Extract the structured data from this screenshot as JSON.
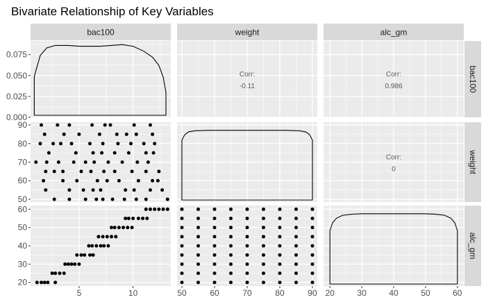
{
  "chart_data": {
    "type": "scatter",
    "title": "Bivariate Relationship of Key Variables",
    "variables": [
      "bac100",
      "weight",
      "alc_gm"
    ],
    "axes": {
      "bac100": {
        "range": [
          0.5,
          13.5
        ],
        "ticks": [
          5,
          10
        ],
        "tick_labels": [
          "5",
          "10"
        ]
      },
      "weight": {
        "range": [
          48.5,
          91.5
        ],
        "ticks": [
          50,
          60,
          70,
          80,
          90
        ],
        "tick_labels": [
          "50",
          "60",
          "70",
          "80",
          "90"
        ]
      },
      "alc_gm": {
        "range": [
          18.0,
          62.0
        ],
        "ticks": [
          20,
          30,
          40,
          50,
          60
        ],
        "tick_labels": [
          "20",
          "30",
          "40",
          "50",
          "60"
        ]
      }
    },
    "density_yaxis": {
      "range": [
        0,
        0.0913
      ],
      "ticks": [
        0,
        0.025,
        0.05,
        0.075
      ],
      "tick_labels": [
        "0.000",
        "0.025",
        "0.050",
        "0.075"
      ]
    },
    "correlations": [
      {
        "row": "bac100",
        "col": "weight",
        "label": "Corr:",
        "value": "-0.11"
      },
      {
        "row": "bac100",
        "col": "alc_gm",
        "label": "Corr:",
        "value": "0.986"
      },
      {
        "row": "weight",
        "col": "alc_gm",
        "label": "Corr:",
        "value": "0"
      }
    ],
    "density_curves": {
      "bac100": [
        [
          0.85,
          0.049
        ],
        [
          1.4,
          0.074
        ],
        [
          2,
          0.083
        ],
        [
          2.8,
          0.086
        ],
        [
          4,
          0.086
        ],
        [
          5,
          0.085
        ],
        [
          6,
          0.085
        ],
        [
          7,
          0.085
        ],
        [
          8,
          0.086
        ],
        [
          9,
          0.087
        ],
        [
          10,
          0.085
        ],
        [
          11,
          0.079
        ],
        [
          11.8,
          0.072
        ],
        [
          12.4,
          0.062
        ],
        [
          12.8,
          0.048
        ],
        [
          13.05,
          0.03
        ]
      ],
      "weight": [
        [
          50,
          0.79
        ],
        [
          50.8,
          0.86
        ],
        [
          52,
          0.9
        ],
        [
          54,
          0.915
        ],
        [
          58,
          0.92
        ],
        [
          70,
          0.92
        ],
        [
          82,
          0.92
        ],
        [
          86,
          0.915
        ],
        [
          88,
          0.9
        ],
        [
          89.2,
          0.86
        ],
        [
          90,
          0.79
        ]
      ],
      "alc_gm": [
        [
          20,
          0.7
        ],
        [
          20.8,
          0.8
        ],
        [
          22,
          0.86
        ],
        [
          24,
          0.9
        ],
        [
          27,
          0.915
        ],
        [
          30,
          0.92
        ],
        [
          40,
          0.92
        ],
        [
          50,
          0.92
        ],
        [
          53,
          0.915
        ],
        [
          56,
          0.9
        ],
        [
          58,
          0.86
        ],
        [
          59.2,
          0.8
        ],
        [
          60,
          0.7
        ]
      ]
    },
    "scatter_weight_vs_bac100": [
      [
        1.5,
        90
      ],
      [
        3.0,
        90
      ],
      [
        4.1,
        90
      ],
      [
        6.2,
        90
      ],
      [
        7.4,
        90
      ],
      [
        7.9,
        90
      ],
      [
        10.1,
        90
      ],
      [
        11.6,
        90
      ],
      [
        1.8,
        85
      ],
      [
        3.6,
        85
      ],
      [
        5.0,
        85
      ],
      [
        6.9,
        85
      ],
      [
        8.5,
        85
      ],
      [
        9.4,
        85
      ],
      [
        10.3,
        85
      ],
      [
        11.8,
        85
      ],
      [
        1.4,
        80
      ],
      [
        2.6,
        80
      ],
      [
        3.3,
        80
      ],
      [
        4.3,
        80
      ],
      [
        6.0,
        80
      ],
      [
        7.2,
        80
      ],
      [
        8.6,
        80
      ],
      [
        9.8,
        80
      ],
      [
        11.0,
        80
      ],
      [
        12.0,
        80
      ],
      [
        2.2,
        75
      ],
      [
        4.7,
        75
      ],
      [
        6.3,
        75
      ],
      [
        7.1,
        75
      ],
      [
        8.3,
        75
      ],
      [
        9.6,
        75
      ],
      [
        11.2,
        75
      ],
      [
        11.9,
        75
      ],
      [
        1.0,
        70
      ],
      [
        2.0,
        70
      ],
      [
        3.1,
        70
      ],
      [
        4.5,
        70
      ],
      [
        5.6,
        70
      ],
      [
        6.4,
        70
      ],
      [
        7.7,
        70
      ],
      [
        9.0,
        70
      ],
      [
        10.4,
        70
      ],
      [
        11.4,
        70
      ],
      [
        1.9,
        65
      ],
      [
        2.7,
        65
      ],
      [
        3.5,
        65
      ],
      [
        5.2,
        65
      ],
      [
        6.1,
        65
      ],
      [
        7.3,
        65
      ],
      [
        8.3,
        65
      ],
      [
        9.9,
        65
      ],
      [
        11.2,
        65
      ],
      [
        12.4,
        65
      ],
      [
        1.7,
        60
      ],
      [
        3.5,
        60
      ],
      [
        4.8,
        60
      ],
      [
        6.7,
        60
      ],
      [
        7.6,
        60
      ],
      [
        8.7,
        60
      ],
      [
        10.5,
        60
      ],
      [
        11.8,
        60
      ],
      [
        12.3,
        60
      ],
      [
        1.9,
        55
      ],
      [
        4.1,
        55
      ],
      [
        5.4,
        55
      ],
      [
        6.3,
        55
      ],
      [
        7.0,
        55
      ],
      [
        9.3,
        55
      ],
      [
        10.1,
        55
      ],
      [
        11.6,
        55
      ],
      [
        12.7,
        55
      ],
      [
        2.7,
        50
      ],
      [
        4.1,
        50
      ],
      [
        5.6,
        50
      ],
      [
        6.6,
        50
      ],
      [
        7.2,
        50
      ],
      [
        8.1,
        50
      ],
      [
        9.2,
        50
      ],
      [
        10.3,
        50
      ],
      [
        11.2,
        50
      ],
      [
        13.2,
        50
      ]
    ],
    "scatter_alc_gm_vs_bac100": [
      [
        1.1,
        20
      ],
      [
        1.5,
        20
      ],
      [
        1.8,
        20
      ],
      [
        2.1,
        20
      ],
      [
        2.8,
        20
      ],
      [
        2.5,
        25
      ],
      [
        2.8,
        25
      ],
      [
        3.2,
        25
      ],
      [
        3.6,
        25
      ],
      [
        3.7,
        30
      ],
      [
        4.0,
        30
      ],
      [
        4.3,
        30
      ],
      [
        4.6,
        30
      ],
      [
        5.0,
        30
      ],
      [
        4.8,
        35
      ],
      [
        5.2,
        35
      ],
      [
        5.5,
        35
      ],
      [
        6.0,
        35
      ],
      [
        6.3,
        35
      ],
      [
        5.9,
        40
      ],
      [
        6.2,
        40
      ],
      [
        6.6,
        40
      ],
      [
        7.0,
        40
      ],
      [
        7.3,
        40
      ],
      [
        7.7,
        40
      ],
      [
        6.8,
        45
      ],
      [
        7.2,
        45
      ],
      [
        7.6,
        45
      ],
      [
        8.0,
        45
      ],
      [
        8.4,
        45
      ],
      [
        8.0,
        50
      ],
      [
        8.3,
        50
      ],
      [
        8.7,
        50
      ],
      [
        9.1,
        50
      ],
      [
        9.5,
        50
      ],
      [
        9.9,
        50
      ],
      [
        9.3,
        55
      ],
      [
        9.6,
        55
      ],
      [
        10.0,
        55
      ],
      [
        10.5,
        55
      ],
      [
        10.9,
        55
      ],
      [
        11.3,
        55
      ],
      [
        11.2,
        60
      ],
      [
        11.6,
        60
      ],
      [
        12.0,
        60
      ],
      [
        12.4,
        60
      ],
      [
        12.8,
        60
      ],
      [
        13.2,
        60
      ]
    ],
    "scatter_alc_gm_vs_weight": {
      "x": [
        50,
        55,
        60,
        65,
        70,
        75,
        80,
        85,
        90
      ],
      "y": [
        20,
        25,
        30,
        35,
        40,
        45,
        50,
        55,
        60
      ]
    }
  }
}
